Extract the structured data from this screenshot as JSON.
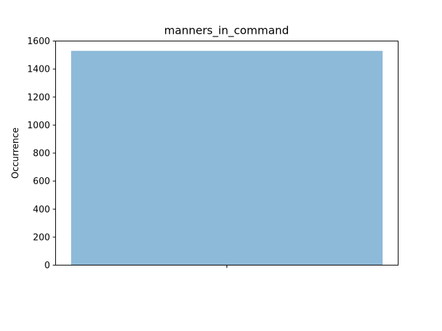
{
  "chart_data": {
    "type": "bar",
    "title": "manners_in_command",
    "xlabel": "",
    "ylabel": "Occurrence",
    "categories": [
      ""
    ],
    "values": [
      1530
    ],
    "ylim": [
      0,
      1600
    ],
    "yticks": [
      0,
      200,
      400,
      600,
      800,
      1000,
      1200,
      1400,
      1600
    ],
    "grid": false,
    "bar_color": "#8ebad9"
  }
}
